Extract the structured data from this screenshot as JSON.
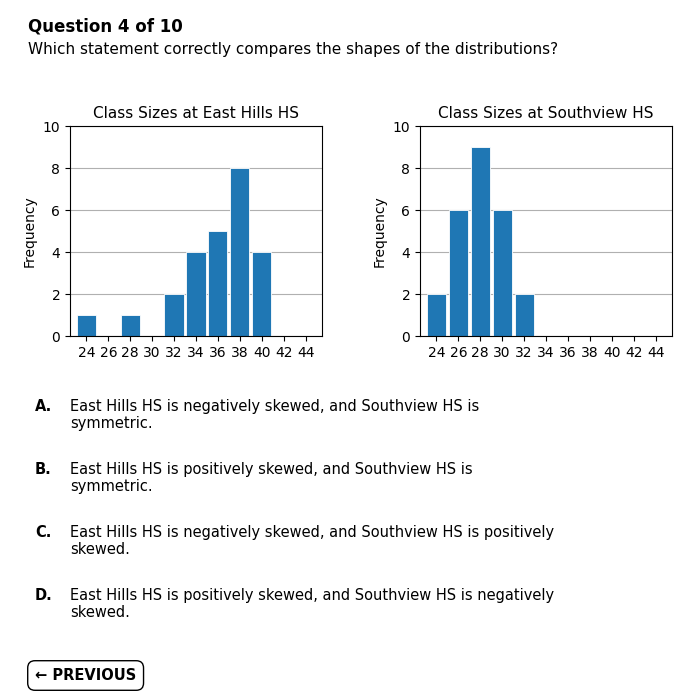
{
  "title": "Question 4 of 10",
  "subtitle": "Which statement correctly compares the shapes of the distributions?",
  "chart_data": [
    {
      "type": "bar",
      "title": "Class Sizes at East Hills HS",
      "ylabel": "Frequency",
      "x": [
        24,
        26,
        28,
        30,
        32,
        34,
        36,
        38,
        40,
        42
      ],
      "values": [
        1,
        0,
        1,
        0,
        2,
        4,
        5,
        8,
        4,
        0
      ],
      "xlim": [
        22.5,
        45.5
      ],
      "xticks": [
        24,
        26,
        28,
        30,
        32,
        34,
        36,
        38,
        40,
        42,
        44
      ],
      "ylim": [
        0,
        10
      ],
      "yticks": [
        0,
        2,
        4,
        6,
        8,
        10
      ],
      "grid": true
    },
    {
      "type": "bar",
      "title": "Class Sizes at Southview HS",
      "ylabel": "Frequency",
      "x": [
        24,
        26,
        28,
        30,
        32,
        34,
        36,
        38,
        40,
        42
      ],
      "values": [
        2,
        6,
        9,
        6,
        2,
        0,
        0,
        0,
        0,
        0
      ],
      "xlim": [
        22.5,
        45.5
      ],
      "xticks": [
        24,
        26,
        28,
        30,
        32,
        34,
        36,
        38,
        40,
        42,
        44
      ],
      "ylim": [
        0,
        10
      ],
      "yticks": [
        0,
        2,
        4,
        6,
        8,
        10
      ],
      "grid": true
    }
  ],
  "annotations": [
    {
      "label": "A.",
      "text": "East Hills HS is negatively skewed, and Southview HS is\nsymmetric."
    },
    {
      "label": "B.",
      "text": "East Hills HS is positively skewed, and Southview HS is\nsymmetric."
    },
    {
      "label": "C.",
      "text": "East Hills HS is negatively skewed, and Southview HS is positively\nskewed."
    },
    {
      "label": "D.",
      "text": "East Hills HS is positively skewed, and Southview HS is negatively\nskewed."
    },
    {
      "text": "← PREVIOUS"
    }
  ]
}
